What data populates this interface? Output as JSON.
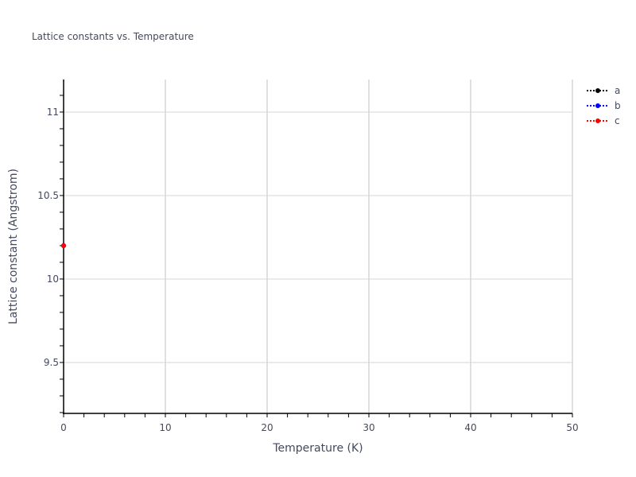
{
  "chart_data": {
    "type": "scatter",
    "title": "Lattice constants vs. Temperature",
    "xlabel": "Temperature (K)",
    "ylabel": "Lattice constant (Angstrom)",
    "xlim": [
      0,
      50
    ],
    "ylim": [
      9.195,
      11.195
    ],
    "x_ticks": [
      0,
      10,
      20,
      30,
      40,
      50
    ],
    "x_tick_labels": [
      "0",
      "10",
      "20",
      "30",
      "40",
      "50"
    ],
    "x_minor_step": 2,
    "y_ticks": [
      9.5,
      10,
      10.5,
      11
    ],
    "y_tick_labels": [
      "9.5",
      "10",
      "10.5",
      "11"
    ],
    "y_minor_step": 0.1,
    "grid": true,
    "legend_placement": "top-right",
    "series": [
      {
        "name": "a",
        "color": "#000000",
        "x": [
          0
        ],
        "y": [
          10.2
        ]
      },
      {
        "name": "b",
        "color": "#0000ff",
        "x": [
          0
        ],
        "y": [
          10.2
        ]
      },
      {
        "name": "c",
        "color": "#ff0000",
        "x": [
          0
        ],
        "y": [
          10.2
        ]
      }
    ]
  }
}
